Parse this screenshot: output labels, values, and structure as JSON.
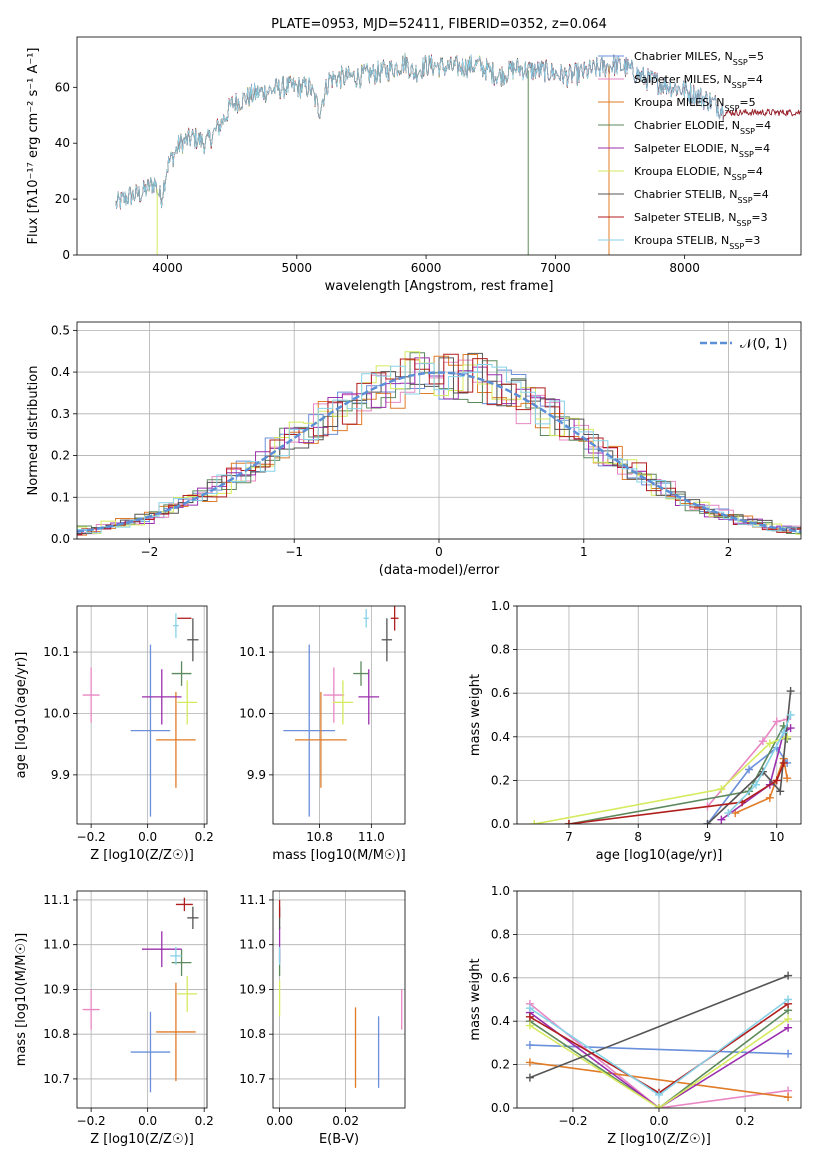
{
  "colors": [
    "#6a8fdb",
    "#e887c3",
    "#e07b27",
    "#5d8a5d",
    "#9b2fae",
    "#d6ea5d",
    "#555555",
    "#b01e1e",
    "#86d2e8"
  ],
  "chart_data": [
    {
      "id": "spectrum",
      "type": "line",
      "title": "PLATE=0953, MJD=52411, FIBERID=0352, z=0.064",
      "xlabel": "wavelength [Angstrom, rest frame]",
      "ylabel": "Flux [fλ10⁻¹⁷ erg cm⁻² s⁻¹ A⁻¹]",
      "xlim": [
        3300,
        8900
      ],
      "ylim": [
        0,
        78
      ],
      "xticks": [
        4000,
        5000,
        6000,
        7000,
        8000
      ],
      "yticks": [
        0,
        20,
        40,
        60
      ],
      "legend_position": "upper-right",
      "series_names": [
        "Chabrier MILES, N_SSP=5",
        "Salpeter MILES, N_SSP=4",
        "Kroupa MILES, N_SSP=5",
        "Chabrier ELODIE, N_SSP=4",
        "Salpeter ELODIE, N_SSP=4",
        "Kroupa ELODIE, N_SSP=4",
        "Chabrier STELIB, N_SSP=4",
        "Salpeter STELIB, N_SSP=3",
        "Kroupa STELIB, N_SSP=3"
      ],
      "continuum": [
        [
          3600,
          18
        ],
        [
          3700,
          21
        ],
        [
          3800,
          22
        ],
        [
          3900,
          26
        ],
        [
          3950,
          20
        ],
        [
          4000,
          32
        ],
        [
          4100,
          40
        ],
        [
          4200,
          42
        ],
        [
          4300,
          40
        ],
        [
          4400,
          46
        ],
        [
          4500,
          54
        ],
        [
          4700,
          58
        ],
        [
          4900,
          60
        ],
        [
          5100,
          60
        ],
        [
          5175,
          52
        ],
        [
          5250,
          63
        ],
        [
          5500,
          64
        ],
        [
          5700,
          66
        ],
        [
          5850,
          69
        ],
        [
          5900,
          65
        ],
        [
          6000,
          68
        ],
        [
          6200,
          67
        ],
        [
          6400,
          68
        ],
        [
          6562,
          64
        ],
        [
          6700,
          67
        ],
        [
          6800,
          66
        ],
        [
          6900,
          66
        ],
        [
          7100,
          64
        ],
        [
          7200,
          65
        ],
        [
          7350,
          67
        ],
        [
          7450,
          68
        ],
        [
          7550,
          67
        ],
        [
          7700,
          63
        ],
        [
          7850,
          61
        ],
        [
          8000,
          59
        ],
        [
          8200,
          55
        ],
        [
          8300,
          52
        ]
      ],
      "end_wavelength": [
        8900,
        8300,
        7420,
        8900,
        8900,
        6800,
        8900,
        8900,
        8300
      ]
    },
    {
      "id": "residuals",
      "type": "histogram",
      "xlabel": "(data-model)/error",
      "ylabel": "Normed distribution",
      "xlim": [
        -2.5,
        2.5
      ],
      "ylim": [
        0,
        0.52
      ],
      "xticks": [
        -2,
        -1,
        0,
        1,
        2
      ],
      "yticks": [
        0.0,
        0.1,
        0.2,
        0.3,
        0.4,
        0.5
      ],
      "legend_position": "upper-right",
      "legend": "𝒩(0, 1)",
      "bin_width": 0.1
    },
    {
      "id": "age-vs-Z",
      "type": "scatter",
      "xlabel": "Z [log10(Z/Z☉)]",
      "ylabel": "age  [log10(age/yr)]",
      "xlim": [
        -0.25,
        0.21
      ],
      "ylim": [
        9.82,
        10.175
      ],
      "xticks": [
        -0.2,
        0.0,
        0.2
      ],
      "yticks": [
        9.9,
        10.0,
        10.1
      ],
      "points": [
        {
          "x": 0.01,
          "y": 9.972,
          "xerr": 0.07,
          "yerr": 0.14
        },
        {
          "x": -0.2,
          "y": 10.03,
          "xerr": 0.03,
          "yerr": 0.045
        },
        {
          "x": 0.1,
          "y": 9.957,
          "xerr": 0.07,
          "yerr": 0.078
        },
        {
          "x": 0.12,
          "y": 10.065,
          "xerr": 0.035,
          "yerr": 0.02
        },
        {
          "x": 0.05,
          "y": 10.027,
          "xerr": 0.07,
          "yerr": 0.045
        },
        {
          "x": 0.14,
          "y": 10.018,
          "xerr": 0.035,
          "yerr": 0.036
        },
        {
          "x": 0.16,
          "y": 10.12,
          "xerr": 0.02,
          "yerr": 0.035
        },
        {
          "x": 0.13,
          "y": 10.155,
          "xerr": 0.025,
          "yerr": 0.0
        },
        {
          "x": 0.1,
          "y": 10.143,
          "xerr": 0.01,
          "yerr": 0.02
        }
      ]
    },
    {
      "id": "age-vs-mass",
      "type": "scatter",
      "xlabel": "mass [log10(M/M☉)]",
      "ylabel": "",
      "xlim": [
        10.62,
        11.13
      ],
      "ylim": [
        9.82,
        10.175
      ],
      "xticks": [
        10.8,
        11.0
      ],
      "yticks": [
        9.9,
        10.0,
        10.1
      ],
      "points": [
        {
          "x": 10.76,
          "y": 9.972,
          "xerr": 0.1,
          "yerr": 0.14
        },
        {
          "x": 10.855,
          "y": 10.03,
          "xerr": 0.04,
          "yerr": 0.045
        },
        {
          "x": 10.805,
          "y": 9.957,
          "xerr": 0.1,
          "yerr": 0.078
        },
        {
          "x": 10.96,
          "y": 10.065,
          "xerr": 0.03,
          "yerr": 0.02
        },
        {
          "x": 10.99,
          "y": 10.027,
          "xerr": 0.04,
          "yerr": 0.045
        },
        {
          "x": 10.89,
          "y": 10.018,
          "xerr": 0.04,
          "yerr": 0.036
        },
        {
          "x": 11.06,
          "y": 10.12,
          "xerr": 0.02,
          "yerr": 0.035
        },
        {
          "x": 11.09,
          "y": 10.155,
          "xerr": 0.015,
          "yerr": 0.02
        },
        {
          "x": 10.98,
          "y": 10.155,
          "xerr": 0.01,
          "yerr": 0.015
        }
      ]
    },
    {
      "id": "weight-vs-age",
      "type": "line",
      "xlabel": "age  [log10(age/yr)]",
      "ylabel": "mass weight",
      "xlim": [
        6.25,
        10.35
      ],
      "ylim": [
        0,
        1
      ],
      "xticks": [
        7,
        8,
        9,
        10
      ],
      "yticks": [
        0.0,
        0.2,
        0.4,
        0.6,
        0.8,
        1.0
      ],
      "series": [
        {
          "x": [
            9.0,
            9.6,
            10.0,
            10.15
          ],
          "y": [
            0.0,
            0.25,
            0.35,
            0.28
          ]
        },
        {
          "x": [
            9.0,
            9.8,
            10.0,
            10.15
          ],
          "y": [
            0.08,
            0.38,
            0.47,
            0.48
          ]
        },
        {
          "x": [
            9.4,
            9.9,
            10.1,
            10.15
          ],
          "y": [
            0.05,
            0.12,
            0.3,
            0.21
          ]
        },
        {
          "x": [
            7.0,
            9.6,
            10.1,
            10.15
          ],
          "y": [
            0.0,
            0.15,
            0.45,
            0.39
          ]
        },
        {
          "x": [
            9.2,
            9.9,
            10.1,
            10.2
          ],
          "y": [
            0.02,
            0.18,
            0.42,
            0.44
          ]
        },
        {
          "x": [
            6.5,
            9.2,
            9.9,
            10.15
          ],
          "y": [
            0.0,
            0.16,
            0.37,
            0.4
          ]
        },
        {
          "x": [
            9.0,
            9.8,
            10.05,
            10.2
          ],
          "y": [
            0.0,
            0.24,
            0.15,
            0.61
          ]
        },
        {
          "x": [
            7.0,
            9.5,
            10.0,
            10.1
          ],
          "y": [
            0.0,
            0.1,
            0.2,
            0.28
          ]
        },
        {
          "x": [
            9.3,
            9.7,
            10.1,
            10.2
          ],
          "y": [
            0.05,
            0.18,
            0.42,
            0.5
          ]
        }
      ]
    },
    {
      "id": "mass-vs-Z",
      "type": "scatter",
      "xlabel": "Z [log10(Z/Z☉)]",
      "ylabel": "mass [log10(M/M☉)]",
      "xlim": [
        -0.25,
        0.21
      ],
      "ylim": [
        10.635,
        11.12
      ],
      "xticks": [
        -0.2,
        0.0,
        0.2
      ],
      "yticks": [
        10.7,
        10.8,
        10.9,
        11.0,
        11.1
      ],
      "points": [
        {
          "x": 0.01,
          "y": 10.76,
          "xerr": 0.07,
          "yerr": 0.09
        },
        {
          "x": -0.2,
          "y": 10.855,
          "xerr": 0.03,
          "yerr": 0.045
        },
        {
          "x": 0.1,
          "y": 10.805,
          "xerr": 0.07,
          "yerr": 0.11
        },
        {
          "x": 0.12,
          "y": 10.96,
          "xerr": 0.035,
          "yerr": 0.03
        },
        {
          "x": 0.05,
          "y": 10.99,
          "xerr": 0.07,
          "yerr": 0.04
        },
        {
          "x": 0.14,
          "y": 10.89,
          "xerr": 0.035,
          "yerr": 0.04
        },
        {
          "x": 0.16,
          "y": 11.06,
          "xerr": 0.02,
          "yerr": 0.025
        },
        {
          "x": 0.13,
          "y": 11.09,
          "xerr": 0.03,
          "yerr": 0.015
        },
        {
          "x": 0.1,
          "y": 10.975,
          "xerr": 0.02,
          "yerr": 0.02
        }
      ]
    },
    {
      "id": "mass-vs-ebv",
      "type": "scatter",
      "xlabel": "E(B-V)",
      "ylabel": "",
      "xlim": [
        -0.002,
        0.038
      ],
      "ylim": [
        10.635,
        11.12
      ],
      "xticks": [
        0.0,
        0.02
      ],
      "yticks": [
        10.7,
        10.8,
        10.9,
        11.0,
        11.1
      ],
      "points": [
        {
          "x": 0.03,
          "y": 10.76,
          "xerr": 0.0,
          "yerr": 0.08
        },
        {
          "x": 0.037,
          "y": 10.855,
          "xerr": 0.0,
          "yerr": 0.045
        },
        {
          "x": 0.023,
          "y": 10.77,
          "xerr": 0.0,
          "yerr": 0.09
        },
        {
          "x": 0.0,
          "y": 10.96,
          "xerr": 0.0,
          "yerr": 0.03
        },
        {
          "x": 0.0,
          "y": 11.0,
          "xerr": 0.0,
          "yerr": 0.04
        },
        {
          "x": 0.0,
          "y": 10.88,
          "xerr": 0.0,
          "yerr": 0.04
        },
        {
          "x": 0.0,
          "y": 11.06,
          "xerr": 0.0,
          "yerr": 0.025
        },
        {
          "x": 0.0,
          "y": 11.08,
          "xerr": 0.0,
          "yerr": 0.02
        },
        {
          "x": 0.0,
          "y": 10.975,
          "xerr": 0.0,
          "yerr": 0.02
        }
      ]
    },
    {
      "id": "weight-vs-Z",
      "type": "line",
      "xlabel": "Z [log10(Z/Z☉)]",
      "ylabel": "mass weight",
      "xlim": [
        -0.33,
        0.33
      ],
      "ylim": [
        0,
        1
      ],
      "xticks": [
        -0.2,
        0.0,
        0.2
      ],
      "yticks": [
        0.0,
        0.2,
        0.4,
        0.6,
        0.8,
        1.0
      ],
      "series": [
        {
          "x": [
            -0.3,
            0.3
          ],
          "y": [
            0.29,
            0.25
          ]
        },
        {
          "x": [
            -0.3,
            0.0,
            0.3
          ],
          "y": [
            0.48,
            0.0,
            0.08
          ]
        },
        {
          "x": [
            -0.3,
            0.3
          ],
          "y": [
            0.21,
            0.05
          ]
        },
        {
          "x": [
            -0.3,
            0.0,
            0.3
          ],
          "y": [
            0.4,
            0.0,
            0.45
          ]
        },
        {
          "x": [
            -0.3,
            0.0,
            0.3
          ],
          "y": [
            0.44,
            0.0,
            0.37
          ]
        },
        {
          "x": [
            -0.3,
            0.0,
            0.3
          ],
          "y": [
            0.38,
            0.0,
            0.41
          ]
        },
        {
          "x": [
            -0.3,
            0.3
          ],
          "y": [
            0.14,
            0.61
          ]
        },
        {
          "x": [
            -0.3,
            0.0,
            0.3
          ],
          "y": [
            0.42,
            0.07,
            0.48
          ]
        },
        {
          "x": [
            -0.3,
            0.0,
            0.3
          ],
          "y": [
            0.46,
            0.06,
            0.5
          ]
        }
      ]
    }
  ]
}
